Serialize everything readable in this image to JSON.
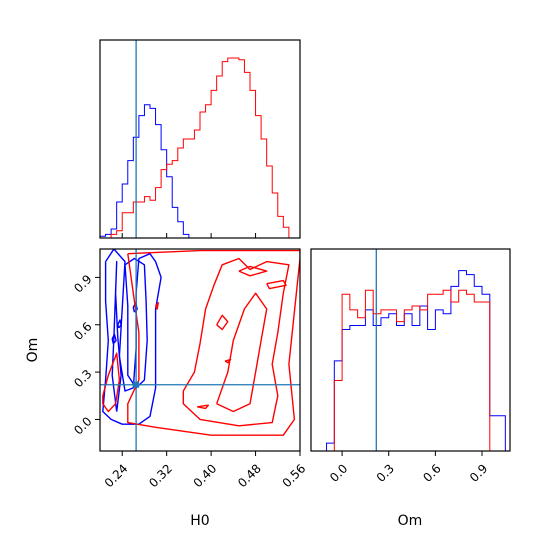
{
  "chart_data": {
    "type": "corner",
    "parameters": [
      "H0",
      "Om"
    ],
    "axis_labels": {
      "x_left": "H0",
      "x_right": "Om",
      "y_left": "Om"
    },
    "ranges": {
      "H0": [
        0.2,
        0.56
      ],
      "Om": [
        -0.2,
        1.08
      ]
    },
    "ticks": {
      "H0": [
        "0.24",
        "0.32",
        "0.40",
        "0.48",
        "0.56"
      ],
      "Om": [
        "0.0",
        "0.3",
        "0.6",
        "0.9"
      ]
    },
    "tick_values": {
      "H0": [
        0.24,
        0.32,
        0.4,
        0.48,
        0.56
      ],
      "Om": [
        0.0,
        0.3,
        0.6,
        0.9
      ]
    },
    "truth": {
      "H0": 0.265,
      "Om": 0.22
    },
    "colors": {
      "blue": "#0000ff",
      "red": "#ff0000",
      "truth": "#1f77b4"
    },
    "hist_H0": {
      "edges": [
        0.2,
        0.21,
        0.22,
        0.23,
        0.24,
        0.25,
        0.26,
        0.27,
        0.28,
        0.29,
        0.3,
        0.31,
        0.32,
        0.33,
        0.34,
        0.35,
        0.36,
        0.37,
        0.38,
        0.39,
        0.4,
        0.41,
        0.42,
        0.43,
        0.44,
        0.45,
        0.46,
        0.47,
        0.48,
        0.49,
        0.5,
        0.51,
        0.52,
        0.53,
        0.54,
        0.55,
        0.56
      ],
      "series": [
        {
          "color": "blue",
          "values": [
            0.01,
            0.02,
            0.05,
            0.2,
            0.3,
            0.43,
            0.56,
            0.68,
            0.74,
            0.72,
            0.63,
            0.49,
            0.34,
            0.17,
            0.09,
            0.02,
            0.0,
            0,
            0,
            0,
            0,
            0,
            0,
            0,
            0,
            0,
            0,
            0,
            0,
            0,
            0,
            0,
            0,
            0,
            0,
            0
          ]
        },
        {
          "color": "red",
          "values": [
            0,
            0,
            0.02,
            0.04,
            0.14,
            0.14,
            0.2,
            0.2,
            0.23,
            0.21,
            0.28,
            0.38,
            0.41,
            0.43,
            0.5,
            0.55,
            0.55,
            0.6,
            0.7,
            0.74,
            0.82,
            0.9,
            0.98,
            1.0,
            1.0,
            0.99,
            0.92,
            0.82,
            0.68,
            0.55,
            0.4,
            0.25,
            0.12,
            0.06,
            0.0,
            0
          ]
        }
      ]
    },
    "hist_Om": {
      "edges": [
        -0.1,
        -0.05,
        0.0,
        0.05,
        0.1,
        0.15,
        0.2,
        0.25,
        0.3,
        0.35,
        0.4,
        0.45,
        0.5,
        0.55,
        0.6,
        0.65,
        0.7,
        0.75,
        0.8,
        0.85,
        0.9,
        0.95,
        1.0,
        1.05
      ],
      "series": [
        {
          "color": "blue",
          "values": [
            0.04,
            0.46,
            0.62,
            0.64,
            0.64,
            0.72,
            0.64,
            0.68,
            0.7,
            0.64,
            0.7,
            0.64,
            0.74,
            0.62,
            0.72,
            0.7,
            0.84,
            0.92,
            0.9,
            0.84,
            0.8,
            0.18,
            0.18
          ]
        },
        {
          "color": "red",
          "values": [
            0,
            0.36,
            0.8,
            0.72,
            0.68,
            0.82,
            0.7,
            0.72,
            0.72,
            0.66,
            0.72,
            0.74,
            0.72,
            0.8,
            0.8,
            0.82,
            0.76,
            0.82,
            0.8,
            0.76,
            0.76,
            0,
            0
          ]
        }
      ]
    },
    "contours": [
      {
        "color": "blue",
        "level": "outer",
        "points": [
          [
            0.21,
            1.0
          ],
          [
            0.225,
            1.08
          ],
          [
            0.245,
            1.0
          ],
          [
            0.24,
            0.7
          ],
          [
            0.235,
            0.4
          ],
          [
            0.245,
            0.18
          ],
          [
            0.26,
            0.2
          ],
          [
            0.265,
            0.45
          ],
          [
            0.265,
            0.8
          ],
          [
            0.27,
            1.02
          ],
          [
            0.29,
            1.05
          ],
          [
            0.3,
            1.0
          ],
          [
            0.31,
            0.9
          ],
          [
            0.3,
            0.7
          ],
          [
            0.3,
            0.45
          ],
          [
            0.3,
            0.2
          ],
          [
            0.29,
            0.02
          ],
          [
            0.27,
            -0.03
          ],
          [
            0.24,
            -0.03
          ],
          [
            0.22,
            0.0
          ],
          [
            0.205,
            0.05
          ],
          [
            0.21,
            0.25
          ],
          [
            0.215,
            0.5
          ],
          [
            0.21,
            0.75
          ],
          [
            0.21,
            1.0
          ]
        ]
      },
      {
        "color": "blue",
        "level": "inner",
        "points": [
          [
            0.245,
            0.98
          ],
          [
            0.25,
            0.72
          ],
          [
            0.25,
            0.45
          ],
          [
            0.25,
            0.28
          ],
          [
            0.265,
            0.2
          ],
          [
            0.28,
            0.25
          ],
          [
            0.285,
            0.5
          ],
          [
            0.283,
            0.75
          ],
          [
            0.28,
            0.98
          ],
          [
            0.262,
            1.02
          ],
          [
            0.245,
            0.98
          ]
        ]
      },
      {
        "color": "blue",
        "level": "inner",
        "points": [
          [
            0.23,
            0.05
          ],
          [
            0.238,
            0.28
          ],
          [
            0.232,
            0.52
          ],
          [
            0.228,
            0.8
          ],
          [
            0.23,
            1.0
          ],
          [
            0.225,
            0.52
          ],
          [
            0.222,
            0.28
          ],
          [
            0.23,
            0.05
          ]
        ]
      },
      {
        "color": "blue",
        "level": "island",
        "points": [
          [
            0.234,
            0.58
          ],
          [
            0.238,
            0.6
          ],
          [
            0.236,
            0.63
          ],
          [
            0.232,
            0.6
          ],
          [
            0.234,
            0.58
          ]
        ]
      },
      {
        "color": "blue",
        "level": "island",
        "points": [
          [
            0.262,
            0.68
          ],
          [
            0.267,
            0.7
          ],
          [
            0.264,
            0.74
          ],
          [
            0.26,
            0.71
          ],
          [
            0.262,
            0.68
          ]
        ]
      },
      {
        "color": "blue",
        "level": "island",
        "points": [
          [
            0.224,
            0.48
          ],
          [
            0.229,
            0.5
          ],
          [
            0.226,
            0.54
          ],
          [
            0.222,
            0.51
          ],
          [
            0.224,
            0.48
          ]
        ]
      },
      {
        "color": "red",
        "level": "outer",
        "points": [
          [
            0.25,
            1.05
          ],
          [
            0.38,
            1.07
          ],
          [
            0.56,
            1.07
          ],
          [
            0.56,
            1.02
          ],
          [
            0.54,
            0.35
          ],
          [
            0.55,
            0.0
          ],
          [
            0.53,
            -0.1
          ],
          [
            0.4,
            -0.1
          ],
          [
            0.3,
            -0.05
          ],
          [
            0.25,
            -0.02
          ],
          [
            0.25,
            0.1
          ],
          [
            0.27,
            0.25
          ],
          [
            0.27,
            0.55
          ],
          [
            0.26,
            0.8
          ],
          [
            0.25,
            1.05
          ]
        ]
      },
      {
        "color": "red",
        "level": "outer-left",
        "points": [
          [
            0.205,
            0.15
          ],
          [
            0.215,
            0.28
          ],
          [
            0.23,
            0.42
          ],
          [
            0.235,
            0.25
          ],
          [
            0.228,
            0.1
          ],
          [
            0.215,
            0.05
          ],
          [
            0.205,
            0.1
          ],
          [
            0.205,
            0.15
          ]
        ]
      },
      {
        "color": "red",
        "level": "inner",
        "points": [
          [
            0.35,
            0.18
          ],
          [
            0.37,
            0.3
          ],
          [
            0.38,
            0.48
          ],
          [
            0.39,
            0.7
          ],
          [
            0.405,
            0.85
          ],
          [
            0.42,
            0.98
          ],
          [
            0.45,
            1.02
          ],
          [
            0.47,
            0.95
          ],
          [
            0.5,
            1.0
          ],
          [
            0.54,
            0.98
          ],
          [
            0.53,
            0.8
          ],
          [
            0.52,
            0.55
          ],
          [
            0.51,
            0.35
          ],
          [
            0.52,
            0.15
          ],
          [
            0.51,
            -0.02
          ],
          [
            0.45,
            -0.04
          ],
          [
            0.38,
            0.0
          ],
          [
            0.35,
            0.1
          ],
          [
            0.35,
            0.18
          ]
        ]
      },
      {
        "color": "red",
        "level": "core",
        "points": [
          [
            0.41,
            0.1
          ],
          [
            0.43,
            0.3
          ],
          [
            0.44,
            0.5
          ],
          [
            0.46,
            0.7
          ],
          [
            0.48,
            0.8
          ],
          [
            0.5,
            0.7
          ],
          [
            0.49,
            0.5
          ],
          [
            0.48,
            0.3
          ],
          [
            0.47,
            0.1
          ],
          [
            0.44,
            0.05
          ],
          [
            0.41,
            0.1
          ]
        ]
      },
      {
        "color": "red",
        "level": "island",
        "points": [
          [
            0.45,
            0.94
          ],
          [
            0.47,
            0.97
          ],
          [
            0.5,
            0.94
          ],
          [
            0.47,
            0.91
          ],
          [
            0.45,
            0.94
          ]
        ]
      },
      {
        "color": "red",
        "level": "island",
        "points": [
          [
            0.5,
            0.86
          ],
          [
            0.53,
            0.88
          ],
          [
            0.535,
            0.85
          ],
          [
            0.505,
            0.83
          ],
          [
            0.5,
            0.86
          ]
        ]
      },
      {
        "color": "red",
        "level": "island",
        "points": [
          [
            0.41,
            0.6
          ],
          [
            0.42,
            0.66
          ],
          [
            0.43,
            0.62
          ],
          [
            0.42,
            0.57
          ],
          [
            0.41,
            0.6
          ]
        ]
      },
      {
        "color": "red",
        "level": "island",
        "points": [
          [
            0.425,
            0.37
          ],
          [
            0.435,
            0.38
          ],
          [
            0.43,
            0.36
          ],
          [
            0.425,
            0.37
          ]
        ]
      },
      {
        "color": "red",
        "level": "island",
        "points": [
          [
            0.375,
            0.08
          ],
          [
            0.395,
            0.09
          ],
          [
            0.39,
            0.07
          ],
          [
            0.375,
            0.08
          ]
        ]
      },
      {
        "color": "red",
        "level": "island",
        "points": [
          [
            0.3,
            0.72
          ],
          [
            0.305,
            0.74
          ],
          [
            0.303,
            0.7
          ],
          [
            0.3,
            0.72
          ]
        ]
      }
    ]
  }
}
